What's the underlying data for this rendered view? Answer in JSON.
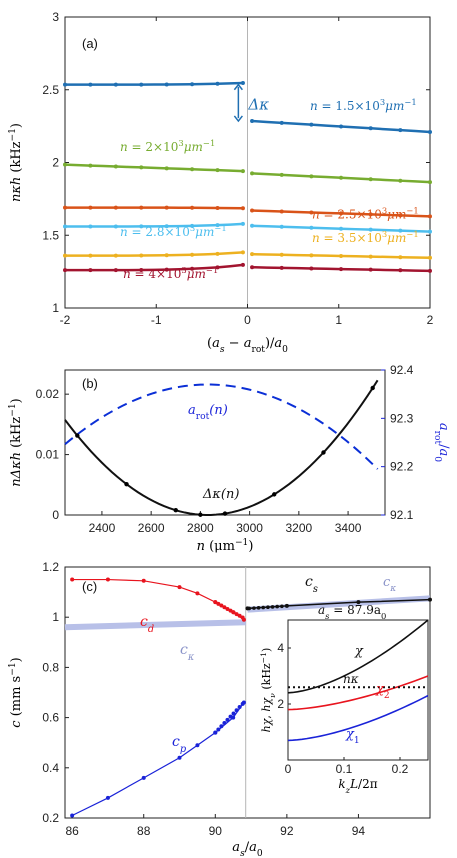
{
  "colors": {
    "blue_dark": "#1f6fb2",
    "green": "#77ac30",
    "orange_red": "#d95319",
    "light_blue": "#4dbeee",
    "yellow": "#edb120",
    "dark_red": "#a2142f",
    "dashed_blue": "#0b2fd6",
    "black": "#111111",
    "red": "#e8141e",
    "lavender": "#b8c0e8",
    "blue": "#1a23d8",
    "divider": "#b5b5b5"
  },
  "chart_data": [
    {
      "type": "line",
      "panel": "(a)",
      "xlabel_tex": "(a_s − a_rot)/a_0",
      "ylabel_parts": {
        "n": "n",
        "kappa": "κ",
        "h": "h",
        "unit": "(kHz",
        "exp": "−1",
        "close": ")"
      },
      "xlim": [
        -2,
        2
      ],
      "ylim": [
        1,
        3
      ],
      "xticks": [
        "-2",
        "-1",
        "0",
        "1",
        "2"
      ],
      "yticks": [
        "1",
        "1.5",
        "2",
        "2.5",
        "3"
      ],
      "annotation_delta": "Δκ",
      "series": [
        {
          "name": "n = 1.5×10³μm⁻¹",
          "color_key": "blue_dark",
          "left": [
            2.535,
            2.548
          ],
          "right": [
            2.285,
            2.21
          ]
        },
        {
          "name": "n = 2×10³μm⁻¹",
          "color_key": "green",
          "left": [
            1.985,
            1.94
          ],
          "right": [
            1.925,
            1.865
          ]
        },
        {
          "name": "n = 2.5×10³μm⁻¹",
          "color_key": "orange_red",
          "left": [
            1.69,
            1.685
          ],
          "right": [
            1.67,
            1.63
          ]
        },
        {
          "name": "n = 2.8×10³μm⁻¹",
          "color_key": "light_blue",
          "left": [
            1.56,
            1.58
          ],
          "right": [
            1.565,
            1.525
          ]
        },
        {
          "name": "n = 3.5×10³μm⁻¹",
          "color_key": "yellow",
          "left": [
            1.36,
            1.385
          ],
          "right": [
            1.37,
            1.345
          ]
        },
        {
          "name": "n = 4×10³μm⁻¹",
          "color_key": "dark_red",
          "left": [
            1.26,
            1.3
          ],
          "right": [
            1.28,
            1.255
          ]
        }
      ],
      "labels": [
        {
          "pre": "n",
          "mid": " = 1.5×10",
          "sup": "3",
          "unit": "μm",
          "usup": "−1",
          "color_key": "blue_dark"
        },
        {
          "pre": "n",
          "mid": " = 2×10",
          "sup": "3",
          "unit": "μm",
          "usup": "−1",
          "color_key": "green"
        },
        {
          "pre": "n",
          "mid": " = 2.5×10",
          "sup": "3",
          "unit": "μm",
          "usup": "−1",
          "color_key": "orange_red"
        },
        {
          "pre": "n",
          "mid": " = 2.8×10",
          "sup": "3",
          "unit": "μm",
          "usup": "−1",
          "color_key": "light_blue"
        },
        {
          "pre": "n",
          "mid": " = 3.5×10",
          "sup": "3",
          "unit": "μm",
          "usup": "−1",
          "color_key": "yellow"
        },
        {
          "pre": "n",
          "mid": " = 4×10",
          "sup": "3",
          "unit": "μm",
          "usup": "−1",
          "color_key": "dark_red"
        }
      ]
    },
    {
      "type": "line",
      "panel": "(b)",
      "xlabel": "n    (μm⁻¹)",
      "ylabel_left": "nΔκh  (kHz⁻¹)",
      "ylabel_right": "a_rot/a_0",
      "xlim": [
        2250,
        3550
      ],
      "ylim_left": [
        0,
        0.024
      ],
      "ylim_right": [
        92.1,
        92.4
      ],
      "xticks": [
        "2400",
        "2600",
        "2800",
        "3000",
        "3200",
        "3400"
      ],
      "yticks_left": [
        "0",
        "0.01",
        "0.02"
      ],
      "yticks_right": [
        "92.1",
        "92.2",
        "92.3",
        "92.4"
      ],
      "delta_kappa_points": [
        [
          2300,
          0.014
        ],
        [
          2500,
          0.005
        ],
        [
          2700,
          0.0008
        ],
        [
          2800,
          0.0001
        ],
        [
          2900,
          0.0005
        ],
        [
          3100,
          0.0035
        ],
        [
          3300,
          0.007
        ],
        [
          3500,
          0.014
        ]
      ],
      "a_rot_range": [
        92.19,
        92.37
      ],
      "curve_labels": {
        "drot": "a",
        "drot_sub": "rot",
        "drot_arg": "(n)",
        "dk": "Δκ(n)"
      }
    },
    {
      "type": "line",
      "panel": "(c)",
      "xlabel": "a_s/a_0",
      "ylabel": "c   (mm s⁻¹)",
      "xlim": [
        85.8,
        96
      ],
      "ylim": [
        0.2,
        1.2
      ],
      "xticks": [
        "86",
        "88",
        "90",
        "92",
        "94"
      ],
      "yticks": [
        "0.2",
        "0.4",
        "0.6",
        "0.8",
        "1",
        "1.2"
      ],
      "divider_x": 90.85,
      "c_d": [
        [
          86,
          1.15
        ],
        [
          87,
          1.15
        ],
        [
          88,
          1.145
        ],
        [
          89,
          1.12
        ],
        [
          89.5,
          1.095
        ],
        [
          90,
          1.06
        ],
        [
          90.5,
          1.02
        ],
        [
          90.8,
          0.99
        ]
      ],
      "c_p": [
        [
          86,
          0.21
        ],
        [
          87,
          0.28
        ],
        [
          88,
          0.36
        ],
        [
          89,
          0.44
        ],
        [
          89.5,
          0.49
        ],
        [
          90,
          0.54
        ],
        [
          90.5,
          0.6
        ],
        [
          90.8,
          0.66
        ]
      ],
      "c_kappa_left": [
        0.96,
        0.98
      ],
      "c_s": [
        [
          90.9,
          1.035
        ],
        [
          92,
          1.045
        ],
        [
          94,
          1.06
        ],
        [
          96,
          1.07
        ]
      ],
      "c_kappa_right": [
        [
          90.9,
          1.03
        ],
        [
          96,
          1.075
        ]
      ],
      "series_labels": {
        "cd": "c",
        "cd_sub": "d",
        "ck": "c",
        "ck_sub": "κ",
        "cp": "c",
        "cp_sub": "p",
        "cs": "c",
        "cs_sub": "s"
      },
      "inset": {
        "title_pre": "a",
        "title_sub": "s",
        "title_post": " = 87.9a",
        "title_sub2": "0",
        "xlabel": "k_z L/2π",
        "ylabel": "hχ, hχ_ν   (kHz⁻¹)",
        "xlim": [
          0,
          0.25
        ],
        "ylim": [
          0,
          5
        ],
        "xticks": [
          "0",
          "0.1",
          "0.2"
        ],
        "yticks": [
          "2",
          "4"
        ],
        "chi": [
          0.0,
          2.4,
          0.25,
          5.0
        ],
        "chi2": [
          0.0,
          1.8,
          0.25,
          3.0
        ],
        "chi1": [
          0.0,
          0.7,
          0.25,
          2.3
        ],
        "n_kappa": 2.6,
        "curve_labels": {
          "chi": "χ",
          "chi2": "χ",
          "chi2_sub": "2",
          "chi1": "χ",
          "chi1_sub": "1",
          "nk": "nκ"
        }
      }
    }
  ]
}
